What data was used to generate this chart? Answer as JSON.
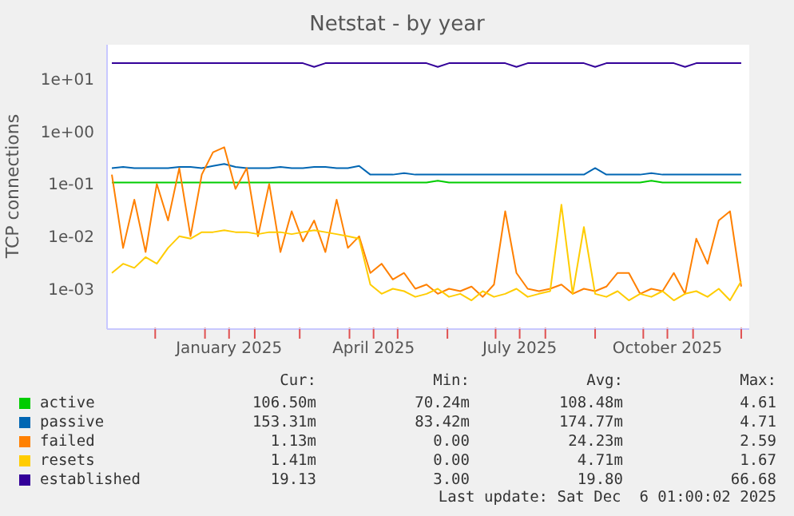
{
  "chart_data": {
    "type": "line",
    "title": "Netstat - by year",
    "ylabel": "TCP connections",
    "log": "y",
    "grid": true,
    "legend": "bottom",
    "marker": "none",
    "line_style": "solid",
    "x": [
      "2024-11-04",
      "2024-11-11",
      "2024-11-18",
      "2024-11-25",
      "2024-12-02",
      "2024-12-09",
      "2024-12-16",
      "2024-12-23",
      "2024-12-30",
      "2025-01-06",
      "2025-01-13",
      "2025-01-20",
      "2025-01-27",
      "2025-02-03",
      "2025-02-10",
      "2025-02-17",
      "2025-02-24",
      "2025-03-03",
      "2025-03-10",
      "2025-03-17",
      "2025-03-24",
      "2025-03-31",
      "2025-04-07",
      "2025-04-14",
      "2025-04-21",
      "2025-04-28",
      "2025-05-05",
      "2025-05-12",
      "2025-05-19",
      "2025-05-26",
      "2025-06-02",
      "2025-06-09",
      "2025-06-16",
      "2025-06-23",
      "2025-06-30",
      "2025-07-07",
      "2025-07-14",
      "2025-07-21",
      "2025-07-28",
      "2025-08-04",
      "2025-08-11",
      "2025-08-18",
      "2025-08-25",
      "2025-09-01",
      "2025-09-08",
      "2025-09-15",
      "2025-09-22",
      "2025-09-29",
      "2025-10-06",
      "2025-10-13",
      "2025-10-20",
      "2025-10-27",
      "2025-11-03",
      "2025-11-10",
      "2025-11-17",
      "2025-11-24",
      "2025-12-01"
    ],
    "xlim": [
      "2024-11-01",
      "2025-12-06"
    ],
    "xticks": [
      {
        "value": "2024-12-01",
        "label": null
      },
      {
        "value": "2025-01-01",
        "label": null
      },
      {
        "value": "2025-01-16",
        "label": "January 2025"
      },
      {
        "value": "2025-02-01",
        "label": null
      },
      {
        "value": "2025-03-01",
        "label": null
      },
      {
        "value": "2025-04-01",
        "label": null
      },
      {
        "value": "2025-04-16",
        "label": "April 2025"
      },
      {
        "value": "2025-05-01",
        "label": null
      },
      {
        "value": "2025-06-01",
        "label": null
      },
      {
        "value": "2025-07-01",
        "label": null
      },
      {
        "value": "2025-07-16",
        "label": "July 2025"
      },
      {
        "value": "2025-08-01",
        "label": null
      },
      {
        "value": "2025-09-01",
        "label": null
      },
      {
        "value": "2025-10-01",
        "label": null
      },
      {
        "value": "2025-10-16",
        "label": "October 2025"
      },
      {
        "value": "2025-11-01",
        "label": null
      },
      {
        "value": "2025-12-01",
        "label": null
      }
    ],
    "ylim": [
      0.00017,
      45
    ],
    "yticks": [
      {
        "value": 0.001,
        "label": "1e-03"
      },
      {
        "value": 0.01,
        "label": "1e-02"
      },
      {
        "value": 0.1,
        "label": "1e-01"
      },
      {
        "value": 1,
        "label": "1e+00"
      },
      {
        "value": 10,
        "label": "1e+01"
      }
    ],
    "series": [
      {
        "name": "active",
        "color": "#00cc00",
        "values": [
          0.106,
          0.106,
          0.106,
          0.106,
          0.106,
          0.106,
          0.106,
          0.106,
          0.106,
          0.106,
          0.106,
          0.106,
          0.106,
          0.106,
          0.106,
          0.106,
          0.106,
          0.106,
          0.106,
          0.106,
          0.106,
          0.106,
          0.106,
          0.106,
          0.106,
          0.106,
          0.106,
          0.106,
          0.106,
          0.115,
          0.106,
          0.106,
          0.106,
          0.106,
          0.106,
          0.106,
          0.106,
          0.106,
          0.106,
          0.106,
          0.106,
          0.106,
          0.106,
          0.106,
          0.106,
          0.106,
          0.106,
          0.106,
          0.115,
          0.106,
          0.106,
          0.106,
          0.106,
          0.106,
          0.106,
          0.106,
          0.106
        ]
      },
      {
        "name": "passive",
        "color": "#0066b3",
        "values": [
          0.2,
          0.21,
          0.2,
          0.2,
          0.2,
          0.2,
          0.21,
          0.21,
          0.2,
          0.22,
          0.24,
          0.21,
          0.2,
          0.2,
          0.2,
          0.21,
          0.2,
          0.2,
          0.21,
          0.21,
          0.2,
          0.2,
          0.22,
          0.15,
          0.15,
          0.15,
          0.16,
          0.15,
          0.15,
          0.15,
          0.15,
          0.15,
          0.15,
          0.15,
          0.15,
          0.15,
          0.15,
          0.15,
          0.15,
          0.15,
          0.15,
          0.15,
          0.15,
          0.2,
          0.15,
          0.15,
          0.15,
          0.15,
          0.16,
          0.15,
          0.15,
          0.15,
          0.15,
          0.15,
          0.15,
          0.15,
          0.15
        ]
      },
      {
        "name": "failed",
        "color": "#ff8000",
        "values": [
          0.15,
          0.006,
          0.05,
          0.005,
          0.1,
          0.02,
          0.2,
          0.01,
          0.15,
          0.4,
          0.5,
          0.08,
          0.2,
          0.01,
          0.1,
          0.005,
          0.03,
          0.008,
          0.02,
          0.005,
          0.05,
          0.006,
          0.01,
          0.002,
          0.003,
          0.0015,
          0.002,
          0.001,
          0.0012,
          0.0008,
          0.001,
          0.0009,
          0.0011,
          0.0007,
          0.0012,
          0.03,
          0.002,
          0.001,
          0.0009,
          0.001,
          0.0012,
          0.0008,
          0.001,
          0.0009,
          0.0011,
          0.002,
          0.002,
          0.0008,
          0.001,
          0.0009,
          0.002,
          0.0008,
          0.009,
          0.003,
          0.02,
          0.03,
          0.0011
        ]
      },
      {
        "name": "resets",
        "color": "#ffcc00",
        "values": [
          0.002,
          0.003,
          0.0025,
          0.004,
          0.003,
          0.006,
          0.01,
          0.009,
          0.012,
          0.012,
          0.013,
          0.012,
          0.012,
          0.011,
          0.012,
          0.012,
          0.011,
          0.012,
          0.013,
          0.012,
          0.011,
          0.01,
          0.009,
          0.0012,
          0.0008,
          0.001,
          0.0009,
          0.0007,
          0.0008,
          0.001,
          0.0007,
          0.0008,
          0.0006,
          0.0009,
          0.0007,
          0.0008,
          0.001,
          0.0007,
          0.0008,
          0.0009,
          0.04,
          0.0008,
          0.015,
          0.0008,
          0.0007,
          0.0009,
          0.0006,
          0.0008,
          0.0007,
          0.0009,
          0.0006,
          0.0008,
          0.0009,
          0.0007,
          0.001,
          0.0006,
          0.0014
        ]
      },
      {
        "name": "established",
        "color": "#330099",
        "values": [
          20,
          20,
          20,
          20,
          20,
          20,
          20,
          20,
          20,
          20,
          20,
          20,
          20,
          20,
          20,
          20,
          20,
          20,
          17,
          20,
          20,
          20,
          20,
          20,
          20,
          20,
          20,
          20,
          20,
          17,
          20,
          20,
          20,
          20,
          20,
          20,
          17,
          20,
          20,
          20,
          20,
          20,
          20,
          17,
          20,
          20,
          20,
          20,
          20,
          20,
          20,
          17,
          20,
          20,
          20,
          20,
          20
        ]
      }
    ],
    "annotations": [
      "Cur:",
      "Min:",
      "Avg:",
      "Max:",
      "106.50m",
      "70.24m",
      "108.48m",
      "4.61",
      "153.31m",
      "83.42m",
      "174.77m",
      "4.71",
      "1.13m",
      "0.00",
      "24.23m",
      "2.59",
      "1.41m",
      "0.00",
      "4.71m",
      "1.67",
      "19.13",
      "3.00",
      "19.80",
      "66.68",
      "Last update: Sat Dec  6 01:00:02 2025"
    ]
  }
}
